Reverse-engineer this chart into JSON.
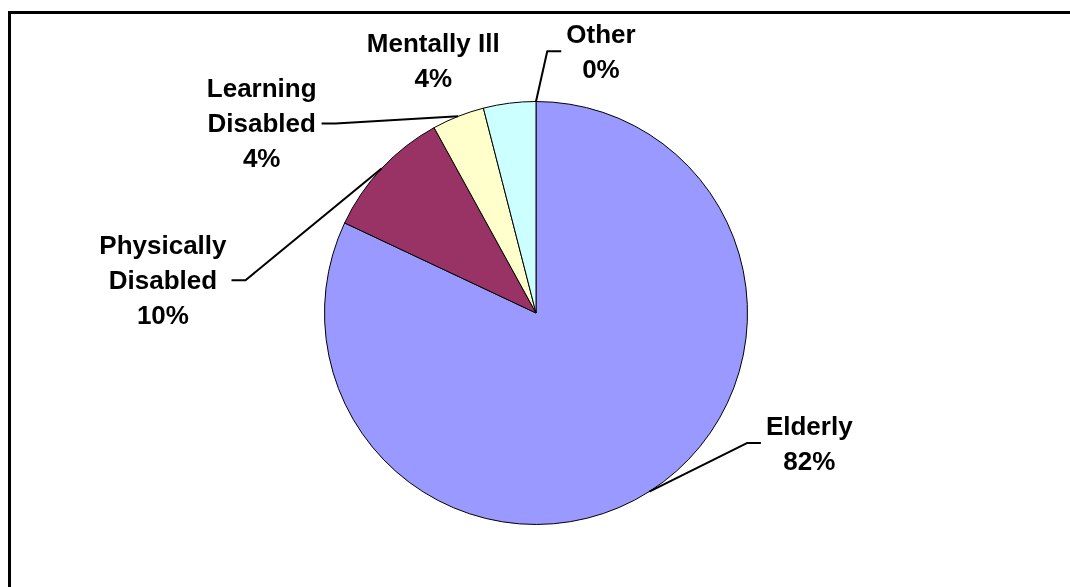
{
  "chart_data": {
    "type": "pie",
    "categories": [
      "Elderly",
      "Physically Disabled",
      "Learning Disabled",
      "Mentally Ill",
      "Other"
    ],
    "values": [
      82,
      10,
      4,
      4,
      0
    ],
    "colors": [
      "#9999ff",
      "#993366",
      "#ffffcc",
      "#ccffff",
      "#660066"
    ],
    "value_labels": [
      "82%",
      "10%",
      "4%",
      "4%",
      "0%"
    ]
  }
}
